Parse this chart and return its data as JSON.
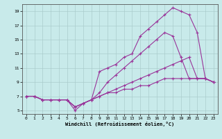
{
  "xlabel": "Windchill (Refroidissement éolien,°C)",
  "xlim": [
    -0.5,
    23.5
  ],
  "ylim": [
    4.5,
    20
  ],
  "xticks": [
    0,
    1,
    2,
    3,
    4,
    5,
    6,
    7,
    8,
    9,
    10,
    11,
    12,
    13,
    14,
    15,
    16,
    17,
    18,
    19,
    20,
    21,
    22,
    23
  ],
  "yticks": [
    5,
    7,
    9,
    11,
    13,
    15,
    17,
    19
  ],
  "background_color": "#c8eaea",
  "grid_color": "#aacccc",
  "line_color": "#993399",
  "line1_x": [
    0,
    1,
    2,
    3,
    4,
    5,
    6,
    7,
    8,
    9,
    10,
    11,
    12,
    13,
    14,
    15,
    16,
    17,
    18,
    19,
    20,
    21,
    22,
    23
  ],
  "line1_y": [
    7,
    7,
    6.5,
    6.5,
    6.5,
    6.5,
    5,
    6,
    6.5,
    10.5,
    11,
    11.5,
    12.5,
    13,
    15.5,
    16.5,
    17.5,
    18.5,
    19.5,
    19,
    18.5,
    16,
    9.5,
    9
  ],
  "line2_x": [
    0,
    1,
    2,
    3,
    4,
    5,
    6,
    7,
    8,
    9,
    10,
    11,
    12,
    13,
    14,
    15,
    16,
    17,
    18,
    19,
    20,
    21,
    22,
    23
  ],
  "line2_y": [
    7,
    7,
    6.5,
    6.5,
    6.5,
    6.5,
    5.5,
    6,
    6.5,
    7.5,
    9,
    10,
    11,
    12,
    13,
    14,
    15,
    16,
    15.5,
    12.5,
    9.5,
    9.5,
    9.5,
    9
  ],
  "line3_x": [
    0,
    1,
    2,
    3,
    4,
    5,
    6,
    7,
    8,
    9,
    10,
    11,
    12,
    13,
    14,
    15,
    16,
    17,
    18,
    19,
    20,
    21,
    22,
    23
  ],
  "line3_y": [
    7,
    7,
    6.5,
    6.5,
    6.5,
    6.5,
    5.5,
    6,
    6.5,
    7,
    7.5,
    8,
    8.5,
    9,
    9.5,
    10,
    10.5,
    11,
    11.5,
    12,
    12.5,
    9.5,
    9.5,
    9
  ],
  "line4_x": [
    0,
    1,
    2,
    3,
    4,
    5,
    6,
    7,
    8,
    9,
    10,
    11,
    12,
    13,
    14,
    15,
    16,
    17,
    18,
    19,
    20,
    21,
    22,
    23
  ],
  "line4_y": [
    7,
    7,
    6.5,
    6.5,
    6.5,
    6.5,
    5.5,
    6,
    6.5,
    7,
    7.5,
    7.5,
    8,
    8,
    8.5,
    8.5,
    9,
    9.5,
    9.5,
    9.5,
    9.5,
    9.5,
    9.5,
    9
  ]
}
